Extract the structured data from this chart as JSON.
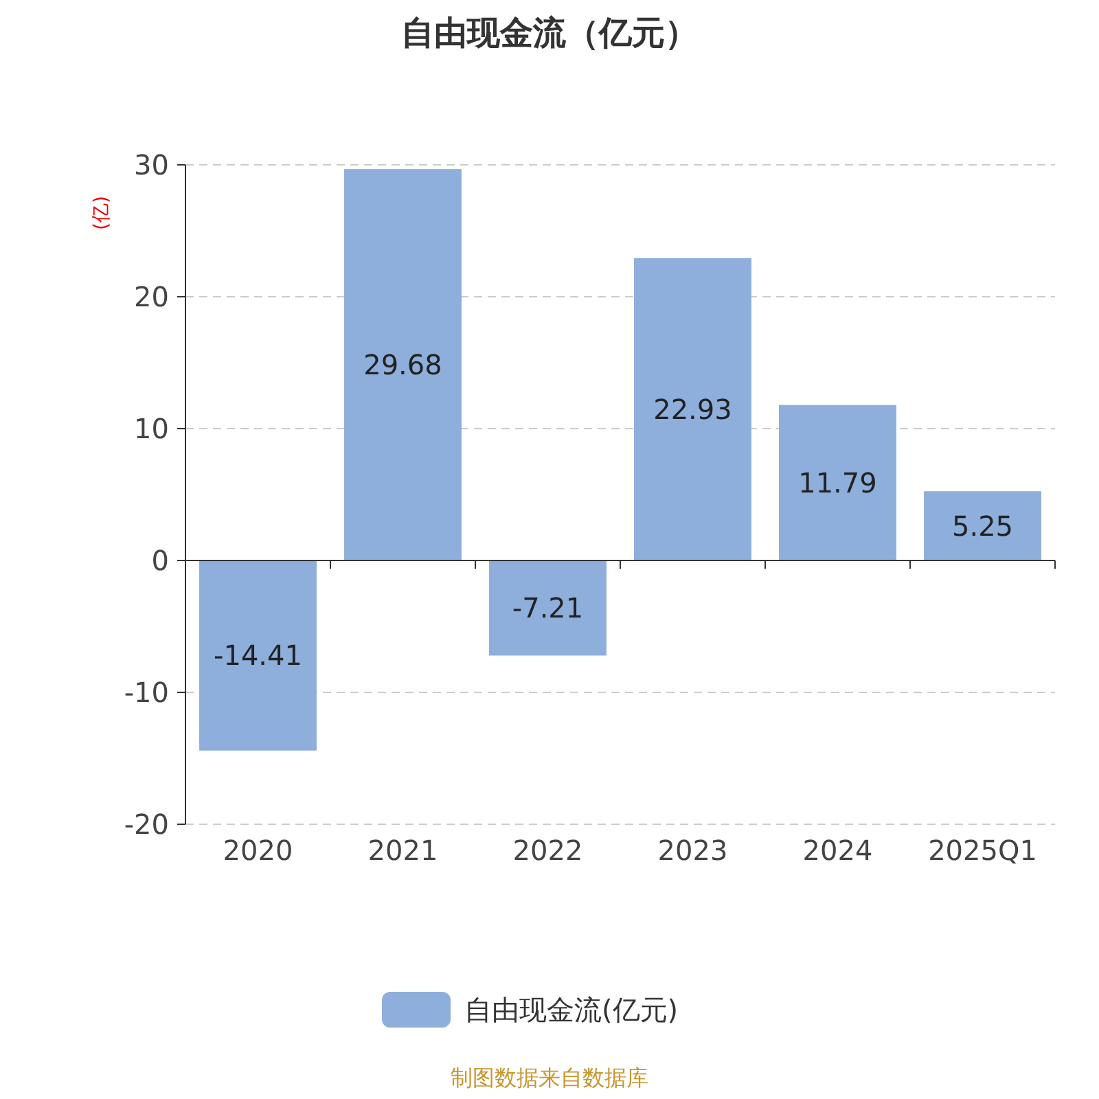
{
  "chart_data": {
    "type": "bar",
    "title": "自由现金流（亿元）",
    "ylabel": "(亿)",
    "categories": [
      "2020",
      "2021",
      "2022",
      "2023",
      "2024",
      "2025Q1"
    ],
    "series": [
      {
        "name": "自由现金流(亿元)",
        "color": "#8eaedb",
        "values": [
          -14.41,
          29.68,
          -7.21,
          22.93,
          11.79,
          5.25
        ]
      }
    ],
    "ylim": [
      -20,
      30
    ],
    "yticks": [
      -20,
      -10,
      0,
      10,
      20,
      30
    ],
    "grid": "y",
    "legend": "bottom",
    "data_labels": true,
    "annotations": [
      "制图数据来自数据库"
    ]
  }
}
